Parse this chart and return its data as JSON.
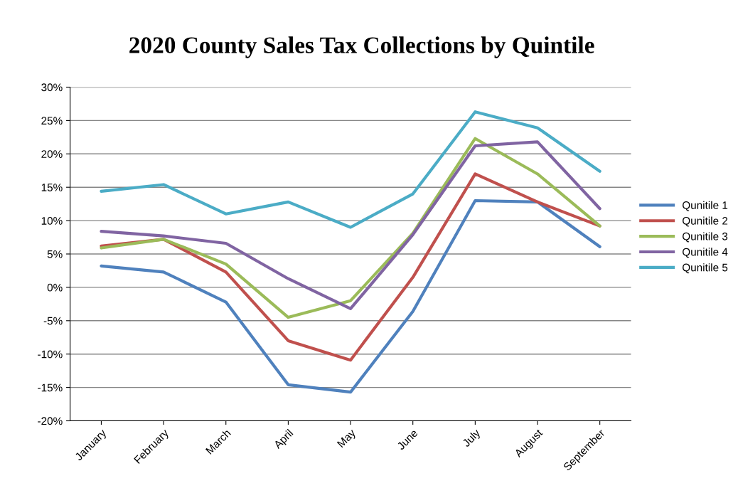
{
  "chart_data": {
    "type": "line",
    "title": "2020 County Sales Tax Collections by Quintile",
    "categories": [
      "January",
      "February",
      "March",
      "April",
      "May",
      "June",
      "July",
      "August",
      "September"
    ],
    "series": [
      {
        "name": "Qunitile 1",
        "color": "#4f81bd",
        "values": [
          3.2,
          2.3,
          -2.2,
          -14.6,
          -15.7,
          -3.6,
          13.0,
          12.8,
          6.1
        ]
      },
      {
        "name": "Qunitile 2",
        "color": "#c0504d",
        "values": [
          6.2,
          7.2,
          2.3,
          -8.0,
          -10.9,
          1.5,
          17.0,
          12.8,
          9.2
        ]
      },
      {
        "name": "Qunitile 3",
        "color": "#9bbb59",
        "values": [
          5.9,
          7.2,
          3.5,
          -4.5,
          -2.0,
          8.1,
          22.3,
          17.0,
          9.2
        ]
      },
      {
        "name": "Qunitile 4",
        "color": "#8064a2",
        "values": [
          8.4,
          7.7,
          6.6,
          1.3,
          -3.2,
          7.9,
          21.2,
          21.8,
          11.8
        ]
      },
      {
        "name": "Qunitile 5",
        "color": "#4bacc6",
        "values": [
          14.4,
          15.4,
          11.0,
          12.8,
          9.0,
          14.0,
          26.3,
          23.9,
          17.4
        ]
      }
    ],
    "ylim": [
      -20,
      30
    ],
    "yticks": [
      {
        "value": -20,
        "label": "-20%"
      },
      {
        "value": -15,
        "label": "-15%"
      },
      {
        "value": -10,
        "label": "-10%"
      },
      {
        "value": -5,
        "label": "-5%"
      },
      {
        "value": 0,
        "label": "0%"
      },
      {
        "value": 5,
        "label": "5%"
      },
      {
        "value": 10,
        "label": "10%"
      },
      {
        "value": 15,
        "label": "15%"
      },
      {
        "value": 20,
        "label": "20%"
      },
      {
        "value": 25,
        "label": "25%"
      },
      {
        "value": 30,
        "label": "30%"
      }
    ],
    "grid": "y",
    "legend": "right",
    "marker": "none",
    "line_style": "solid"
  }
}
